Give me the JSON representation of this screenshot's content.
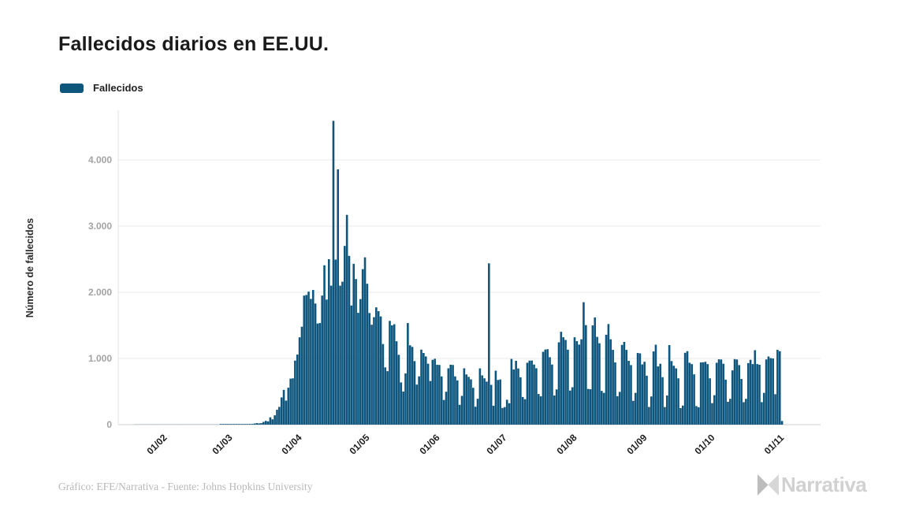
{
  "title": "Fallecidos diarios en EE.UU.",
  "legend": {
    "label": "Fallecidos",
    "color": "#0e567d"
  },
  "footer": {
    "credit": "Gráfico: EFE/Narrativa - Fuente: Johns Hopkins University"
  },
  "brand": {
    "name": "Narrativa"
  },
  "chart_data": {
    "type": "bar",
    "title": "Fallecidos diarios en EE.UU.",
    "ylabel": "Número de fallecidos",
    "ylim": [
      0,
      4750
    ],
    "grid": true,
    "legend_position": "top-left",
    "y_ticks": [
      {
        "value": 0,
        "label": "0"
      },
      {
        "value": 1000,
        "label": "1.000"
      },
      {
        "value": 2000,
        "label": "2.000"
      },
      {
        "value": 3000,
        "label": "3.000"
      },
      {
        "value": 4000,
        "label": "4.000"
      }
    ],
    "x_ticks": [
      {
        "label": "01/02",
        "day": 10
      },
      {
        "label": "01/03",
        "day": 39
      },
      {
        "label": "01/04",
        "day": 70
      },
      {
        "label": "01/05",
        "day": 100
      },
      {
        "label": "01/06",
        "day": 131
      },
      {
        "label": "01/07",
        "day": 161
      },
      {
        "label": "01/08",
        "day": 192
      },
      {
        "label": "01/09",
        "day": 223
      },
      {
        "label": "01/10",
        "day": 253
      },
      {
        "label": "01/11",
        "day": 284
      }
    ],
    "series": [
      {
        "name": "Fallecidos",
        "color": "#0e567d",
        "start_label": "22/01",
        "values": [
          0,
          0,
          0,
          0,
          0,
          0,
          0,
          0,
          0,
          0,
          0,
          0,
          0,
          0,
          0,
          0,
          0,
          0,
          0,
          0,
          0,
          0,
          0,
          0,
          0,
          0,
          0,
          0,
          0,
          0,
          0,
          0,
          0,
          0,
          0,
          0,
          0,
          0,
          1,
          1,
          4,
          2,
          3,
          1,
          3,
          4,
          3,
          4,
          4,
          6,
          4,
          10,
          11,
          17,
          23,
          19,
          23,
          41,
          57,
          49,
          111,
          80,
          141,
          225,
          268,
          411,
          525,
          363,
          558,
          695,
          700,
          968,
          1059,
          1320,
          1480,
          1950,
          1960,
          2010,
          1900,
          2035,
          1830,
          1528,
          1535,
          1950,
          2408,
          1890,
          2500,
          2100,
          4591,
          2494,
          3857,
          2100,
          2160,
          2700,
          3170,
          2550,
          1800,
          2430,
          2200,
          1690,
          1897,
          2350,
          2528,
          2129,
          1687,
          1510,
          1624,
          1772,
          1715,
          1635,
          1218,
          865,
          808,
          1568,
          1500,
          1518,
          1260,
          1055,
          638,
          500,
          774,
          1535,
          1199,
          1175,
          960,
          605,
          730,
          1134,
          1083,
          1031,
          921,
          659,
          980,
          995,
          905,
          902,
          729,
          373,
          497,
          851,
          905,
          902,
          729,
          669,
          300,
          435,
          851,
          759,
          722,
          684,
          557,
          271,
          391,
          850,
          744,
          700,
          650,
          2437,
          601,
          285,
          815,
          675,
          683,
          252,
          265,
          376,
          324,
          993,
          834,
          964,
          849,
          715,
          418,
          384,
          935,
          967,
          969,
          908,
          852,
          463,
          428,
          1101,
          1135,
          1140,
          1019,
          908,
          441,
          532,
          1244,
          1403,
          1320,
          1280,
          1133,
          515,
          565,
          1320,
          1262,
          1210,
          1290,
          1850,
          1504,
          540,
          535,
          1500,
          1620,
          1326,
          1230,
          510,
          480,
          1358,
          1520,
          1290,
          1130,
          940,
          430,
          495,
          1205,
          1250,
          1130,
          964,
          900,
          360,
          480,
          1083,
          1077,
          910,
          950,
          740,
          267,
          426,
          1106,
          1208,
          880,
          920,
          717,
          266,
          440,
          1202,
          960,
          890,
          850,
          700,
          250,
          288,
          1085,
          1110,
          935,
          915,
          760,
          280,
          263,
          940,
          942,
          950,
          915,
          700,
          325,
          445,
          935,
          987,
          985,
          920,
          680,
          345,
          390,
          820,
          990,
          985,
          900,
          690,
          340,
          390,
          930,
          980,
          915,
          1125,
          915,
          905,
          340,
          480,
          985,
          1030,
          1005,
          1000,
          460,
          1130,
          1110,
          55
        ]
      }
    ]
  }
}
